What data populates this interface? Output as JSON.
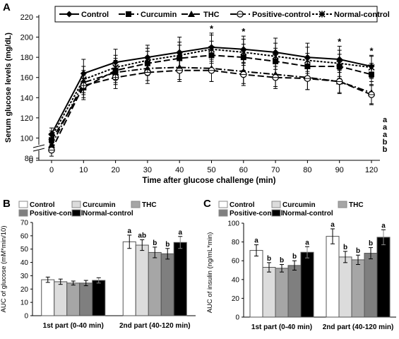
{
  "colors": {
    "axis": "#000000",
    "bar_fills": [
      "#ffffff",
      "#dcdcdc",
      "#a6a6a6",
      "#7f7f7f",
      "#000000"
    ]
  },
  "panel_a": {
    "letter": "A",
    "legend": [
      "Control",
      "Curcumin",
      "THC",
      "Positive-control",
      "Normal-control"
    ],
    "xlabel": "Time after glucose challenge (min)",
    "ylabel": "Serum glucose levels (mg/dL)"
  },
  "panel_b": {
    "letter": "B",
    "legend": [
      "Control",
      "Curcumin",
      "THC",
      "Positive-control",
      "Normal-control"
    ],
    "ylabel": "AUC of glucose  (mM*min/10)"
  },
  "panel_c": {
    "letter": "C",
    "legend": [
      "Control",
      "Curcumin",
      "THC",
      "Positive-control",
      "Normal-control"
    ],
    "ylabel": "AUC of insulin  (ng/mL*min)"
  },
  "chart_data": [
    {
      "type": "line",
      "x": [
        0,
        10,
        20,
        30,
        40,
        50,
        60,
        70,
        80,
        90,
        120
      ],
      "x_tick_labels": [
        "0",
        "10",
        "20",
        "30",
        "40",
        "50",
        "60",
        "70",
        "80",
        "90",
        "120"
      ],
      "xlabel": "Time after glucose challenge (min)",
      "ylabel": "Serum glucose levels (mg/dL)",
      "ylim": [
        80,
        220
      ],
      "y_ticks": [
        80,
        100,
        120,
        140,
        160,
        180,
        200,
        220
      ],
      "y_extra_ticks": [
        0
      ],
      "y_axis_break": true,
      "series": [
        {
          "name": "Control",
          "marker": "diamond",
          "dash": "solid",
          "values": [
            104,
            164,
            175,
            180,
            185,
            190,
            188,
            185,
            180,
            178,
            171
          ],
          "errors": [
            6,
            14,
            13,
            12,
            15,
            14,
            13,
            14,
            14,
            13,
            11
          ]
        },
        {
          "name": "Curcumin",
          "marker": "square",
          "dash": "long-dash",
          "values": [
            98,
            150,
            167,
            174,
            179,
            182,
            180,
            176,
            171,
            171,
            163
          ],
          "errors": [
            6,
            12,
            12,
            12,
            13,
            14,
            13,
            13,
            13,
            12,
            11
          ]
        },
        {
          "name": "THC",
          "marker": "triangle",
          "dash": "dash-dot",
          "values": [
            93,
            155,
            165,
            169,
            170,
            169,
            166,
            163,
            160,
            156,
            145
          ],
          "errors": [
            6,
            12,
            12,
            12,
            12,
            13,
            12,
            12,
            12,
            12,
            11
          ]
        },
        {
          "name": "Positive-control",
          "marker": "circle-open",
          "dash": "long-dash",
          "values": [
            88,
            152,
            160,
            165,
            167,
            167,
            163,
            160,
            159,
            156,
            143
          ],
          "errors": [
            6,
            12,
            11,
            11,
            11,
            11,
            11,
            11,
            11,
            11,
            10
          ]
        },
        {
          "name": "Normal-control",
          "marker": "star",
          "dash": "dotted",
          "values": [
            101,
            158,
            170,
            177,
            182,
            188,
            185,
            181,
            177,
            174,
            170
          ],
          "errors": [
            6,
            13,
            12,
            12,
            13,
            14,
            13,
            13,
            13,
            13,
            11
          ]
        }
      ],
      "annotations": [
        {
          "x": 50,
          "text": "*"
        },
        {
          "x": 60,
          "text": "*"
        },
        {
          "x": 90,
          "text": "*"
        },
        {
          "x": 120,
          "text": "*"
        }
      ],
      "end_labels": [
        "a",
        "a",
        "a",
        "b",
        "b"
      ],
      "legend_position": "top",
      "grid": false
    },
    {
      "type": "bar",
      "categories": [
        "1st part (0-40 min)",
        "2nd part (40-120 min)"
      ],
      "ylabel": "AUC of glucose  (mM*min/10)",
      "ylim": [
        0,
        70
      ],
      "y_ticks": [
        0,
        10,
        20,
        30,
        40,
        50,
        60,
        70
      ],
      "series": [
        {
          "name": "Control",
          "values": [
            27,
            55.5
          ],
          "errors": [
            2,
            5
          ]
        },
        {
          "name": "Curcumin",
          "values": [
            25.5,
            53
          ],
          "errors": [
            2,
            4
          ]
        },
        {
          "name": "THC",
          "values": [
            24.5,
            47.5
          ],
          "errors": [
            1.5,
            4
          ]
        },
        {
          "name": "Positive-control",
          "values": [
            24.5,
            46.5
          ],
          "errors": [
            2,
            4
          ]
        },
        {
          "name": "Normal-control",
          "values": [
            26.5,
            55
          ],
          "errors": [
            2,
            4.5
          ]
        }
      ],
      "significance": [
        [
          "",
          "",
          "",
          "",
          ""
        ],
        [
          "a",
          "ab",
          "b",
          "b",
          "a"
        ]
      ],
      "legend_position": "top",
      "grid": false
    },
    {
      "type": "bar",
      "categories": [
        "1st part (0-40 min)",
        "2nd part (40-120 min)"
      ],
      "ylabel": "AUC of insulin  (ng/mL*min)",
      "ylim": [
        0,
        100
      ],
      "y_ticks": [
        0,
        20,
        40,
        60,
        80,
        100
      ],
      "series": [
        {
          "name": "Control",
          "values": [
            71,
            86
          ],
          "errors": [
            6,
            8
          ]
        },
        {
          "name": "Curcumin",
          "values": [
            53,
            64
          ],
          "errors": [
            5,
            6
          ]
        },
        {
          "name": "THC",
          "values": [
            52,
            61
          ],
          "errors": [
            4,
            5
          ]
        },
        {
          "name": "Positive-control",
          "values": [
            55,
            68
          ],
          "errors": [
            5,
            6
          ]
        },
        {
          "name": "Normal-control",
          "values": [
            69,
            85
          ],
          "errors": [
            6,
            8
          ]
        }
      ],
      "significance": [
        [
          "a",
          "b",
          "b",
          "b",
          "a"
        ],
        [
          "a",
          "b",
          "b",
          "b",
          "a"
        ]
      ],
      "legend_position": "top",
      "grid": false
    }
  ]
}
